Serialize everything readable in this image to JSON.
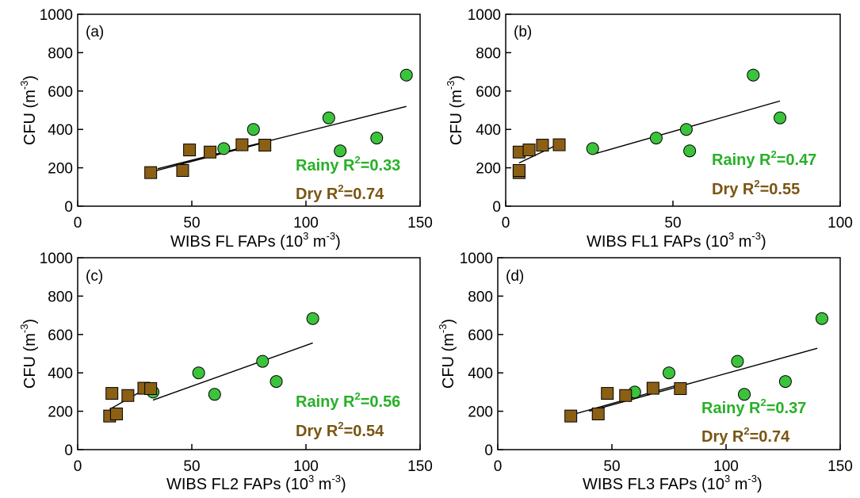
{
  "colors": {
    "rainy": "#3cc33c",
    "dry": "#8b5f14",
    "rainy_text": "#27b027",
    "dry_text": "#7a5512",
    "axis": "#000000"
  },
  "chart_data": [
    {
      "type": "scatter",
      "panel_label": "(a)",
      "xlabel": {
        "main": "WIBS FL FAPs (10",
        "sup1": "3",
        "mid": " m",
        "sup2": "-3",
        "end": ")"
      },
      "ylabel": {
        "main": "CFU (m",
        "sup": "-3",
        "end": ")"
      },
      "xlim": [
        0,
        150
      ],
      "ylim": [
        0,
        1000
      ],
      "x_ticks": [
        "0",
        "50",
        "100",
        "150"
      ],
      "y_ticks": [
        "0",
        "200",
        "400",
        "600",
        "800",
        "1000"
      ],
      "series": [
        {
          "name": "Rainy",
          "marker": "circle",
          "color": "#3cc33c",
          "points": [
            [
              64,
              300
            ],
            [
              77,
              400
            ],
            [
              110,
              460
            ],
            [
              115,
              288
            ],
            [
              131,
              355
            ],
            [
              144,
              683
            ]
          ],
          "fit": [
            [
              35,
              195
            ],
            [
              144,
              520
            ]
          ]
        },
        {
          "name": "Dry",
          "marker": "square",
          "color": "#8b5f14",
          "points": [
            [
              32,
              175
            ],
            [
              46,
              186
            ],
            [
              49,
              293
            ],
            [
              58,
              282
            ],
            [
              72,
              320
            ],
            [
              82,
              318
            ]
          ],
          "fit": [
            [
              32,
              178
            ],
            [
              82,
              332
            ]
          ]
        }
      ],
      "annotations": [
        {
          "label": "Rainy R",
          "sup": "2",
          "value": "=0.33",
          "series": "rainy"
        },
        {
          "label": "Dry R",
          "sup": "2",
          "value": "=0.74",
          "series": "dry"
        }
      ]
    },
    {
      "type": "scatter",
      "panel_label": "(b)",
      "xlabel": {
        "main": "WIBS FL1 FAPs (10",
        "sup1": "3",
        "mid": " m",
        "sup2": "-3",
        "end": ")"
      },
      "ylabel": {
        "main": "CFU (m",
        "sup": "-3",
        "end": ")"
      },
      "xlim": [
        0,
        100
      ],
      "ylim": [
        0,
        1000
      ],
      "x_ticks": [
        "0",
        "50",
        "100"
      ],
      "y_ticks": [
        "0",
        "200",
        "400",
        "600",
        "800",
        "1000"
      ],
      "series": [
        {
          "name": "Rainy",
          "marker": "circle",
          "color": "#3cc33c",
          "points": [
            [
              26,
              300
            ],
            [
              45,
              355
            ],
            [
              54,
              400
            ],
            [
              55,
              288
            ],
            [
              74,
              683
            ],
            [
              82,
              460
            ]
          ],
          "fit": [
            [
              26,
              270
            ],
            [
              82,
              548
            ]
          ]
        },
        {
          "name": "Dry",
          "marker": "square",
          "color": "#8b5f14",
          "points": [
            [
              4,
              175
            ],
            [
              4,
              186
            ],
            [
              4,
              282
            ],
            [
              7,
              293
            ],
            [
              11,
              318
            ],
            [
              16,
              320
            ]
          ],
          "fit": [
            [
              4,
              225
            ],
            [
              16,
              325
            ]
          ]
        }
      ],
      "annotations": [
        {
          "label": "Rainy R",
          "sup": "2",
          "value": "=0.47",
          "series": "rainy"
        },
        {
          "label": "Dry R",
          "sup": "2",
          "value": "=0.55",
          "series": "dry"
        }
      ]
    },
    {
      "type": "scatter",
      "panel_label": "(c)",
      "xlabel": {
        "main": "WIBS FL2 FAPs (10",
        "sup1": "3",
        "mid": " m",
        "sup2": "-3",
        "end": ")"
      },
      "ylabel": {
        "main": "CFU (m",
        "sup": "-3",
        "end": ")"
      },
      "xlim": [
        0,
        150
      ],
      "ylim": [
        0,
        1000
      ],
      "x_ticks": [
        "0",
        "50",
        "100",
        "150"
      ],
      "y_ticks": [
        "0",
        "200",
        "400",
        "600",
        "800",
        "1000"
      ],
      "series": [
        {
          "name": "Rainy",
          "marker": "circle",
          "color": "#3cc33c",
          "points": [
            [
              33,
              300
            ],
            [
              53,
              400
            ],
            [
              60,
              288
            ],
            [
              81,
              460
            ],
            [
              87,
              355
            ],
            [
              103,
              683
            ]
          ],
          "fit": [
            [
              33,
              258
            ],
            [
              103,
              556
            ]
          ]
        },
        {
          "name": "Dry",
          "marker": "square",
          "color": "#8b5f14",
          "points": [
            [
              14,
              175
            ],
            [
              15,
              293
            ],
            [
              17,
              186
            ],
            [
              22,
              282
            ],
            [
              29,
              320
            ],
            [
              32,
              318
            ]
          ],
          "fit": [
            [
              14,
              210
            ],
            [
              32,
              332
            ]
          ]
        }
      ],
      "annotations": [
        {
          "label": "Rainy R",
          "sup": "2",
          "value": "=0.56",
          "series": "rainy"
        },
        {
          "label": "Dry R",
          "sup": "2",
          "value": "=0.54",
          "series": "dry"
        }
      ]
    },
    {
      "type": "scatter",
      "panel_label": "(d)",
      "xlabel": {
        "main": "WIBS FL3 FAPs (10",
        "sup1": "3",
        "mid": " m",
        "sup2": "-3",
        "end": ")"
      },
      "ylabel": {
        "main": "CFU (m",
        "sup": "-3",
        "end": ")"
      },
      "xlim": [
        0,
        150
      ],
      "ylim": [
        0,
        1000
      ],
      "x_ticks": [
        "0",
        "50",
        "100",
        "150"
      ],
      "y_ticks": [
        "0",
        "200",
        "400",
        "600",
        "800",
        "1000"
      ],
      "series": [
        {
          "name": "Rainy",
          "marker": "circle",
          "color": "#3cc33c",
          "points": [
            [
              60,
              300
            ],
            [
              75,
              400
            ],
            [
              105,
              460
            ],
            [
              108,
              288
            ],
            [
              126,
              355
            ],
            [
              142,
              683
            ]
          ],
          "fit": [
            [
              40,
              200
            ],
            [
              140,
              528
            ]
          ]
        },
        {
          "name": "Dry",
          "marker": "square",
          "color": "#8b5f14",
          "points": [
            [
              32,
              175
            ],
            [
              44,
              186
            ],
            [
              48,
              293
            ],
            [
              56,
              282
            ],
            [
              68,
              320
            ],
            [
              80,
              318
            ]
          ],
          "fit": [
            [
              32,
              180
            ],
            [
              80,
              340
            ]
          ]
        }
      ],
      "annotations": [
        {
          "label": "Rainy R",
          "sup": "2",
          "value": "=0.37",
          "series": "rainy"
        },
        {
          "label": "Dry R",
          "sup": "2",
          "value": "=0.74",
          "series": "dry"
        }
      ]
    }
  ]
}
